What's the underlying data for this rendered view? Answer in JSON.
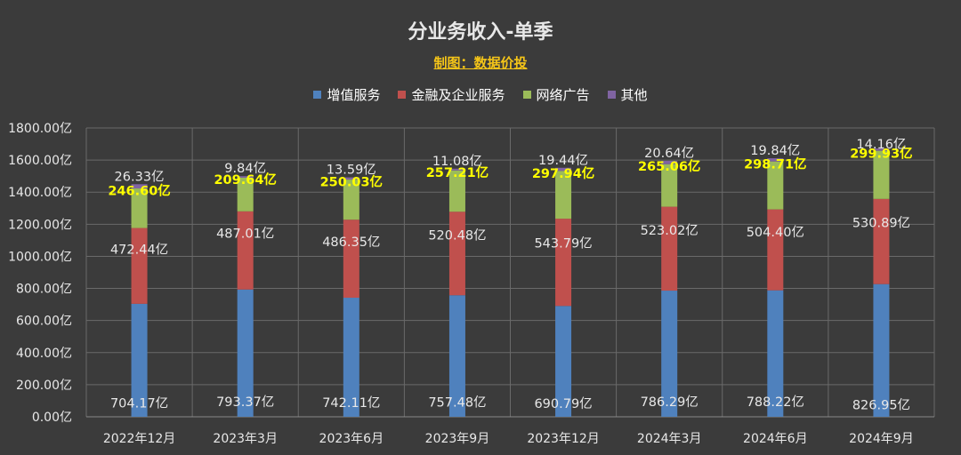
{
  "chart_data": {
    "type": "bar",
    "stacked": true,
    "title": "分业务收入-单季",
    "subtitle": "制图：数据价投",
    "categories": [
      "2022年12月",
      "2023年3月",
      "2023年6月",
      "2023年9月",
      "2023年12月",
      "2024年3月",
      "2024年6月",
      "2024年9月"
    ],
    "series": [
      {
        "name": "增值服务",
        "color": "#4f81bd",
        "label_color": "#e8e8e8",
        "values": [
          704.17,
          793.37,
          742.11,
          757.48,
          690.79,
          786.29,
          788.22,
          826.95
        ],
        "labels": [
          "704.17亿",
          "793.37亿",
          "742.11亿",
          "757.48亿",
          "690.79亿",
          "786.29亿",
          "788.22亿",
          "826.95亿"
        ]
      },
      {
        "name": "金融及企业服务",
        "color": "#c0504d",
        "label_color": "#e8e8e8",
        "values": [
          472.44,
          487.01,
          486.35,
          520.48,
          543.79,
          523.02,
          504.4,
          530.89
        ],
        "labels": [
          "472.44亿",
          "487.01亿",
          "486.35亿",
          "520.48亿",
          "543.79亿",
          "523.02亿",
          "504.40亿",
          "530.89亿"
        ]
      },
      {
        "name": "网络广告",
        "color": "#9bbb59",
        "label_color": "#ffff00",
        "values": [
          246.6,
          209.64,
          250.03,
          257.21,
          297.94,
          265.06,
          298.71,
          299.93
        ],
        "labels": [
          "246.60亿",
          "209.64亿",
          "250.03亿",
          "257.21亿",
          "297.94亿",
          "265.06亿",
          "298.71亿",
          "299.93亿"
        ]
      },
      {
        "name": "其他",
        "color": "#8064a2",
        "label_color": "#e8e8e8",
        "values": [
          26.33,
          9.84,
          13.59,
          11.08,
          19.44,
          20.64,
          19.84,
          14.16
        ],
        "labels": [
          "26.33亿",
          "9.84亿",
          "13.59亿",
          "11.08亿",
          "19.44亿",
          "20.64亿",
          "19.84亿",
          "14.16亿"
        ]
      }
    ],
    "ylim": [
      0,
      1800
    ],
    "yticks": [
      0,
      200,
      400,
      600,
      800,
      1000,
      1200,
      1400,
      1600,
      1800
    ],
    "ytick_labels": [
      "0.00亿",
      "200.00亿",
      "400.00亿",
      "600.00亿",
      "800.00亿",
      "1000.00亿",
      "1200.00亿",
      "1400.00亿",
      "1600.00亿",
      "1800.00亿"
    ],
    "grid": true,
    "legend_position": "top"
  }
}
